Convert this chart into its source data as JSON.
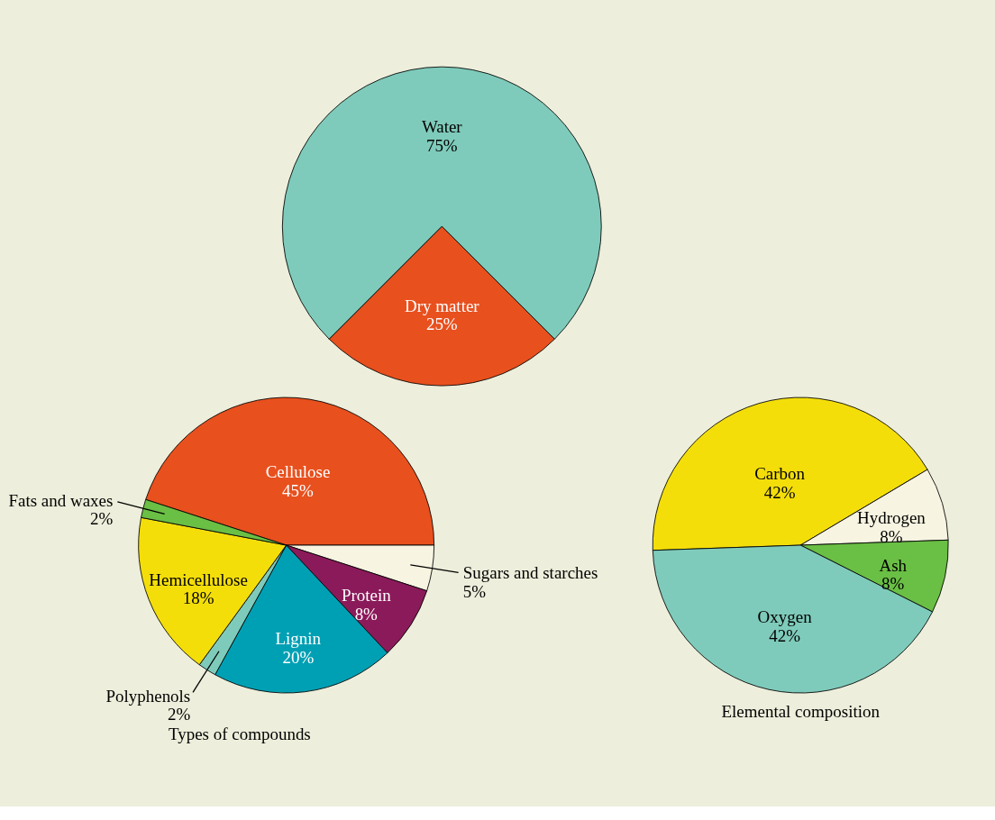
{
  "chart_data": [
    {
      "type": "pie",
      "categories": [
        "Dry matter",
        "Water"
      ],
      "values": [
        25,
        75
      ],
      "value_labels": [
        "25%",
        "75%"
      ],
      "colors": [
        "#e8501e",
        "#7fcbbb"
      ]
    },
    {
      "type": "pie",
      "title": "Types of compounds",
      "categories": [
        "Cellulose",
        "Sugars and starches",
        "Protein",
        "Lignin",
        "Polyphenols",
        "Hemicellulose",
        "Fats and waxes"
      ],
      "values": [
        45,
        5,
        8,
        20,
        2,
        18,
        2
      ],
      "value_labels": [
        "45%",
        "5%",
        "8%",
        "20%",
        "2%",
        "18%",
        "2%"
      ],
      "colors": [
        "#e8501e",
        "#f7f4e1",
        "#8b1a5a",
        "#00a0b4",
        "#7fcbbb",
        "#f4de0a",
        "#6abf45"
      ]
    },
    {
      "type": "pie",
      "title": "Elemental composition",
      "categories": [
        "Carbon",
        "Hydrogen",
        "Ash",
        "Oxygen"
      ],
      "values": [
        42,
        8,
        8,
        42
      ],
      "value_labels": [
        "42%",
        "8%",
        "8%",
        "42%"
      ],
      "colors": [
        "#f4de0a",
        "#f7f4e1",
        "#6abf45",
        "#7fcbbb"
      ]
    }
  ]
}
